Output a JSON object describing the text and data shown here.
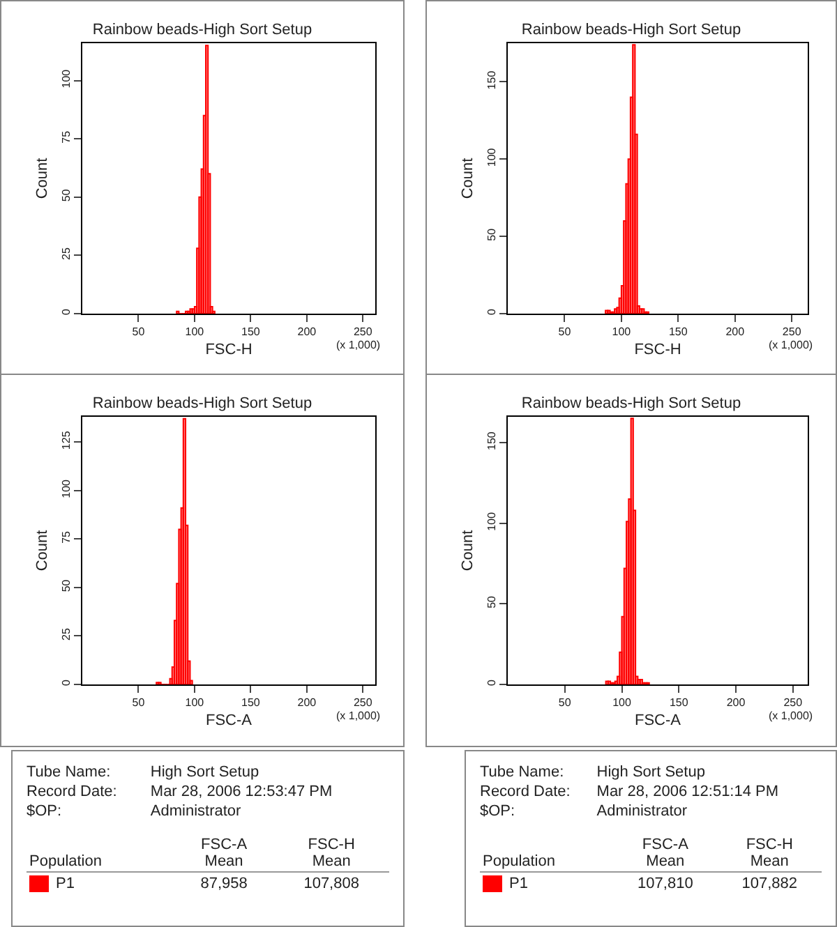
{
  "chart_data": [
    {
      "type": "histogram",
      "title": "Rainbow beads-High Sort Setup",
      "xlabel": "FSC-H",
      "ylabel": "Count",
      "annotations": [
        "(x 1,000)"
      ],
      "color": "#ff0000",
      "xlim": [
        0,
        261
      ],
      "xticks": [
        50,
        100,
        150,
        200,
        250
      ],
      "ylim": [
        0,
        116
      ],
      "yticks": [
        0,
        25,
        50,
        75,
        100
      ],
      "bins": [
        84,
        86,
        88,
        90,
        92,
        94,
        96,
        98,
        100,
        102,
        104,
        106,
        108,
        110,
        112,
        114,
        116,
        118
      ],
      "values": [
        1,
        0,
        0,
        0,
        1,
        1,
        2,
        2,
        3,
        28,
        50,
        62,
        85,
        115,
        60,
        3,
        1
      ]
    },
    {
      "type": "histogram",
      "title": "Rainbow beads-High Sort Setup",
      "xlabel": "FSC-H",
      "ylabel": "Count",
      "annotations": [
        "(x 1,000)"
      ],
      "color": "#ff0000",
      "xlim": [
        0,
        264
      ],
      "xticks": [
        50,
        100,
        150,
        200,
        250
      ],
      "ylim": [
        0,
        175
      ],
      "yticks": [
        0,
        50,
        100,
        150
      ],
      "bins": [
        86,
        88,
        90,
        92,
        94,
        96,
        98,
        100,
        102,
        104,
        106,
        108,
        110,
        112,
        114,
        116,
        118,
        120,
        122,
        124
      ],
      "values": [
        2,
        2,
        1,
        1,
        3,
        4,
        10,
        18,
        60,
        84,
        100,
        140,
        174,
        116,
        5,
        3,
        3,
        1,
        1
      ]
    },
    {
      "type": "histogram",
      "title": "Rainbow beads-High Sort Setup",
      "xlabel": "FSC-A",
      "ylabel": "Count",
      "annotations": [
        "(x 1,000)"
      ],
      "color": "#ff0000",
      "xlim": [
        0,
        261
      ],
      "xticks": [
        50,
        100,
        150,
        200,
        250
      ],
      "ylim": [
        0,
        138
      ],
      "yticks": [
        0,
        25,
        50,
        75,
        100,
        125
      ],
      "bins": [
        66,
        68,
        70,
        72,
        74,
        76,
        78,
        80,
        82,
        84,
        86,
        88,
        90,
        92,
        94,
        96,
        98
      ],
      "values": [
        1,
        1,
        0,
        0,
        0,
        0,
        3,
        9,
        33,
        52,
        80,
        91,
        137,
        82,
        12,
        2
      ]
    },
    {
      "type": "histogram",
      "title": "Rainbow beads-High Sort Setup",
      "xlabel": "FSC-A",
      "ylabel": "Count",
      "annotations": [
        "(x 1,000)"
      ],
      "color": "#ff0000",
      "xlim": [
        0,
        263
      ],
      "xticks": [
        50,
        100,
        150,
        200,
        250
      ],
      "ylim": [
        0,
        166
      ],
      "yticks": [
        0,
        50,
        100,
        150
      ],
      "bins": [
        86,
        88,
        90,
        92,
        94,
        96,
        98,
        100,
        102,
        104,
        106,
        108,
        110,
        112,
        114,
        116,
        118,
        120,
        122,
        124
      ],
      "values": [
        2,
        2,
        1,
        1,
        2,
        5,
        20,
        42,
        72,
        101,
        115,
        165,
        108,
        5,
        3,
        3,
        1,
        1,
        1
      ]
    },
    {
      "type": "other",
      "color": "#ff0000",
      "annotations": [
        "Tube Name:",
        "High Sort Setup",
        "Record Date:",
        "Mar 28, 2006 12:53:47 PM",
        "$OP:",
        "Administrator",
        "Population",
        "FSC-A\nMean",
        "FSC-H\nMean",
        "P1",
        "87,958",
        "107,808"
      ]
    },
    {
      "type": "other",
      "color": "#ff0000",
      "annotations": [
        "Tube Name:",
        "High Sort Setup",
        "Record Date:",
        "Mar 28, 2006 12:51:14 PM",
        "$OP:",
        "Administrator",
        "Population",
        "FSC-A\nMean",
        "FSC-H\nMean",
        "P1",
        "107,810",
        "107,882"
      ]
    }
  ]
}
